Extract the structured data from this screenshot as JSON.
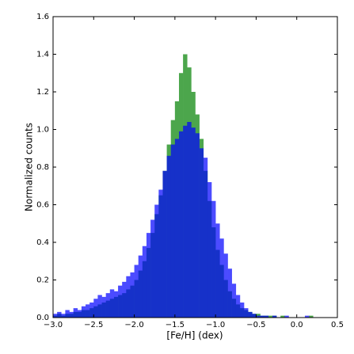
{
  "chart_data": {
    "type": "histogram",
    "xlabel": "[Fe/H] (dex)",
    "ylabel": "Normalized counts",
    "bins": [
      -3.0,
      -2.95,
      -2.9,
      -2.85,
      -2.8,
      -2.75,
      -2.7,
      -2.65,
      -2.6,
      -2.55,
      -2.5,
      -2.45,
      -2.4,
      -2.35,
      -2.3,
      -2.25,
      -2.2,
      -2.15,
      -2.1,
      -2.05,
      -2.0,
      -1.95,
      -1.9,
      -1.85,
      -1.8,
      -1.75,
      -1.7,
      -1.65,
      -1.6,
      -1.55,
      -1.5,
      -1.45,
      -1.4,
      -1.35,
      -1.3,
      -1.25,
      -1.2,
      -1.15,
      -1.1,
      -1.05,
      -1.0,
      -0.95,
      -0.9,
      -0.85,
      -0.8,
      -0.75,
      -0.7,
      -0.65,
      -0.6,
      -0.55,
      -0.5,
      -0.45,
      -0.4,
      -0.35,
      -0.3,
      -0.25,
      -0.2,
      -0.15,
      -0.1,
      -0.05,
      0.0,
      0.05,
      0.1,
      0.15,
      0.2,
      0.25,
      0.3,
      0.35,
      0.4,
      0.45,
      0.5
    ],
    "series": [
      {
        "color": "#4ca64c",
        "opacity": 1,
        "values": [
          0.01,
          0.02,
          0.01,
          0.02,
          0.02,
          0.03,
          0.03,
          0.04,
          0.04,
          0.05,
          0.06,
          0.07,
          0.08,
          0.09,
          0.1,
          0.11,
          0.12,
          0.13,
          0.15,
          0.17,
          0.2,
          0.25,
          0.3,
          0.37,
          0.45,
          0.55,
          0.65,
          0.78,
          0.92,
          1.05,
          1.15,
          1.3,
          1.4,
          1.33,
          1.2,
          1.08,
          0.95,
          0.78,
          0.62,
          0.48,
          0.36,
          0.28,
          0.2,
          0.14,
          0.1,
          0.07,
          0.05,
          0.04,
          0.03,
          0.02,
          0.02,
          0.01,
          0.01,
          0.01,
          0.01,
          0.0,
          0.01,
          0.0,
          0.0,
          0.0,
          0.0,
          0.0,
          0.0,
          0.01,
          0.0,
          0.0,
          0.0,
          0.0,
          0.0,
          0.0
        ]
      },
      {
        "color": "#0000ff",
        "opacity": 0.7,
        "values": [
          0.02,
          0.03,
          0.02,
          0.04,
          0.03,
          0.05,
          0.04,
          0.06,
          0.07,
          0.08,
          0.1,
          0.12,
          0.11,
          0.13,
          0.15,
          0.14,
          0.17,
          0.19,
          0.22,
          0.24,
          0.28,
          0.33,
          0.38,
          0.45,
          0.52,
          0.6,
          0.68,
          0.78,
          0.86,
          0.92,
          0.95,
          0.99,
          1.02,
          1.04,
          1.01,
          0.98,
          0.9,
          0.85,
          0.72,
          0.62,
          0.5,
          0.42,
          0.34,
          0.26,
          0.18,
          0.12,
          0.08,
          0.05,
          0.03,
          0.02,
          0.01,
          0.01,
          0.01,
          0.0,
          0.01,
          0.0,
          0.0,
          0.01,
          0.0,
          0.0,
          0.0,
          0.0,
          0.01,
          0.0,
          0.0,
          0.0,
          0.0,
          0.0,
          0.0,
          0.0
        ]
      }
    ],
    "xlim": [
      -3.0,
      0.5
    ],
    "xticks": [
      {
        "value": -3.0,
        "label": "−3.0"
      },
      {
        "value": -2.5,
        "label": "−2.5"
      },
      {
        "value": -2.0,
        "label": "−2.0"
      },
      {
        "value": -1.5,
        "label": "−1.5"
      },
      {
        "value": -1.0,
        "label": "−1.0"
      },
      {
        "value": -0.5,
        "label": "−0.5"
      },
      {
        "value": 0.0,
        "label": "0.0"
      },
      {
        "value": 0.5,
        "label": "0.5"
      }
    ],
    "ylim": [
      0.0,
      1.6
    ],
    "yticks": [
      {
        "value": 0,
        "label": "0.0"
      },
      {
        "value": 0.2,
        "label": "0.2"
      },
      {
        "value": 0.4,
        "label": "0.4"
      },
      {
        "value": 0.6,
        "label": "0.6"
      },
      {
        "value": 0.8,
        "label": "0.8"
      },
      {
        "value": 1,
        "label": "1.0"
      },
      {
        "value": 1.2,
        "label": "1.2"
      },
      {
        "value": 1.4,
        "label": "1.4"
      },
      {
        "value": 1.6,
        "label": "1.6"
      }
    ],
    "grid": false
  }
}
